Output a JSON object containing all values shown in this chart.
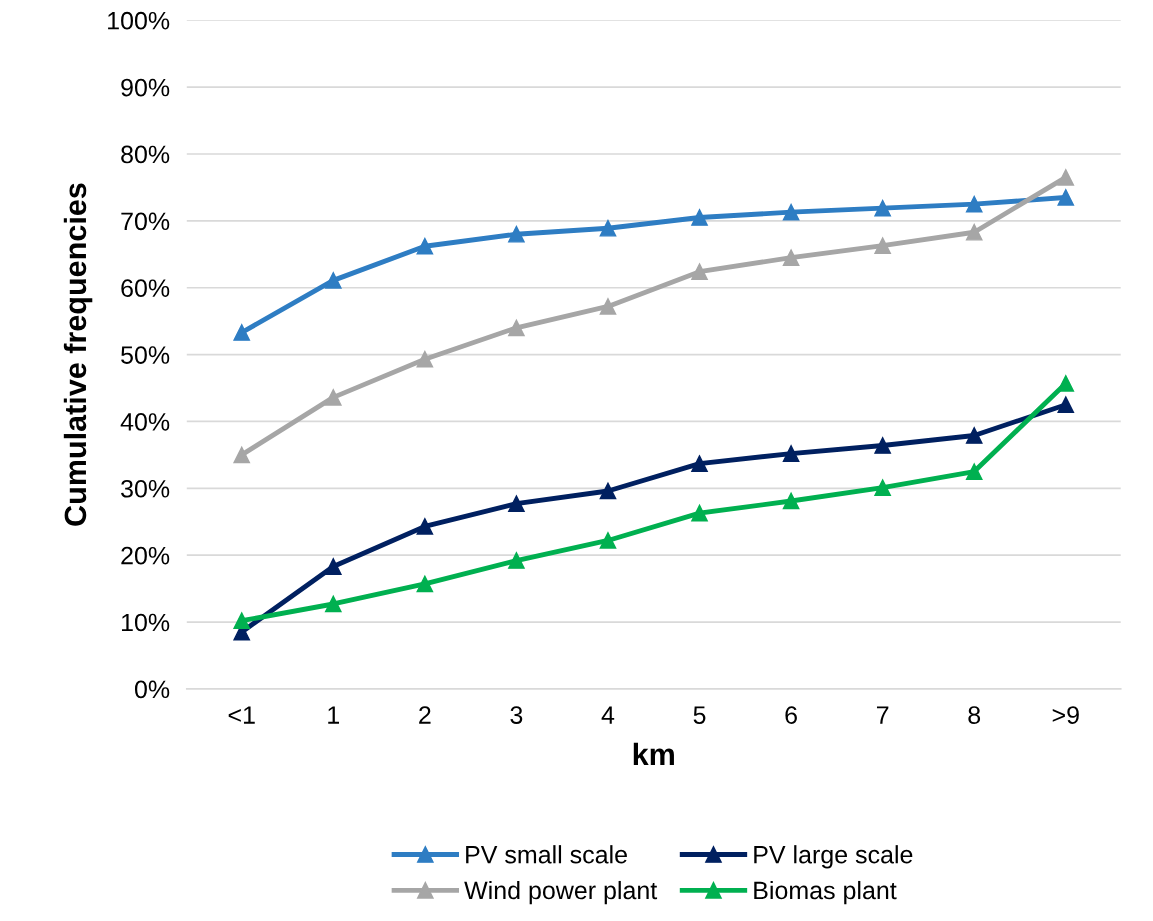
{
  "chart_data": {
    "type": "line",
    "xlabel": "km",
    "ylabel": "Cumulative frequencies",
    "categories": [
      "<1",
      "1",
      "2",
      "3",
      "4",
      "5",
      "6",
      "7",
      "8",
      ">9"
    ],
    "series": [
      {
        "name": "PV small scale",
        "color": "#2e7dc3",
        "values": [
          53.3,
          61.1,
          66.2,
          68.0,
          68.9,
          70.5,
          71.3,
          71.9,
          72.5,
          73.5
        ]
      },
      {
        "name": "PV large scale",
        "color": "#002060",
        "values": [
          8.5,
          18.3,
          24.3,
          27.7,
          29.6,
          33.7,
          35.2,
          36.4,
          37.9,
          42.5
        ]
      },
      {
        "name": "Wind power plant",
        "color": "#a6a6a6",
        "values": [
          35.0,
          43.6,
          49.3,
          54.0,
          57.2,
          62.4,
          64.5,
          66.3,
          68.3,
          76.5
        ]
      },
      {
        "name": "Biomas plant",
        "color": "#00b050",
        "values": [
          10.2,
          12.7,
          15.7,
          19.2,
          22.2,
          26.3,
          28.1,
          30.1,
          32.5,
          45.7
        ]
      }
    ],
    "ylim": [
      0,
      100
    ],
    "yticks": [
      {
        "value": 0,
        "label": "0%"
      },
      {
        "value": 10,
        "label": "10%"
      },
      {
        "value": 20,
        "label": "20%"
      },
      {
        "value": 30,
        "label": "30%"
      },
      {
        "value": 40,
        "label": "40%"
      },
      {
        "value": 50,
        "label": "50%"
      },
      {
        "value": 60,
        "label": "60%"
      },
      {
        "value": 70,
        "label": "70%"
      },
      {
        "value": 80,
        "label": "80%"
      },
      {
        "value": 90,
        "label": "90%"
      },
      {
        "value": 100,
        "label": "100%"
      }
    ],
    "grid": "y",
    "legend": "bottom",
    "marker": "triangle",
    "line_style": "solid"
  }
}
